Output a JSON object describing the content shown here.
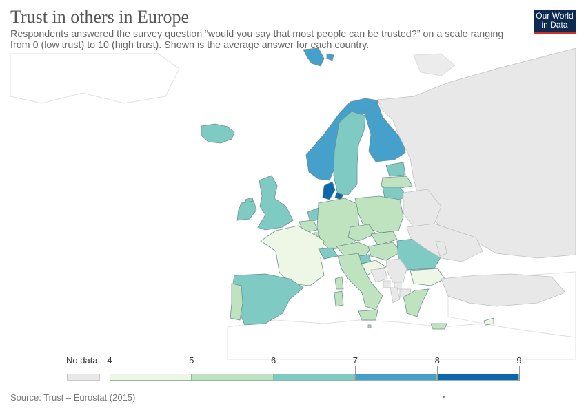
{
  "header": {
    "title": "Trust in others in Europe",
    "subtitle": "Respondents answered the survey question “would you say that most people can be trusted?” on a scale ranging from 0 (low trust) to 10 (high trust). Shown is the average answer for each country.",
    "logo_line1": "Our World",
    "logo_line2": "in Data"
  },
  "legend": {
    "no_data_label": "No data",
    "no_data_color": "#e8e8e8",
    "ticks": [
      "4",
      "5",
      "6",
      "7",
      "8",
      "9"
    ],
    "bins": [
      {
        "from": 4,
        "to": 5,
        "color": "#eef7e6"
      },
      {
        "from": 5,
        "to": 6,
        "color": "#bfe3bf"
      },
      {
        "from": 6,
        "to": 7,
        "color": "#7fcbc4"
      },
      {
        "from": 7,
        "to": 8,
        "color": "#45a1cc"
      },
      {
        "from": 8,
        "to": 9,
        "color": "#0d67ad"
      }
    ]
  },
  "footer": {
    "source": "Source: Trust – Eurostat (2015)"
  },
  "map": {
    "countries": [
      {
        "name": "Iceland",
        "bin": 3
      },
      {
        "name": "Norway",
        "bin": 4
      },
      {
        "name": "Sweden",
        "bin": 3
      },
      {
        "name": "Finland",
        "bin": 4
      },
      {
        "name": "Denmark",
        "bin": 5
      },
      {
        "name": "Estonia",
        "bin": 3
      },
      {
        "name": "Latvia",
        "bin": 2
      },
      {
        "name": "Lithuania",
        "bin": 3
      },
      {
        "name": "United Kingdom",
        "bin": 3
      },
      {
        "name": "Ireland",
        "bin": 3
      },
      {
        "name": "Netherlands",
        "bin": 3
      },
      {
        "name": "Belgium",
        "bin": 2
      },
      {
        "name": "Luxembourg",
        "bin": 2
      },
      {
        "name": "Germany",
        "bin": 2
      },
      {
        "name": "Poland",
        "bin": 2
      },
      {
        "name": "France",
        "bin": 1
      },
      {
        "name": "Switzerland",
        "bin": 3
      },
      {
        "name": "Austria",
        "bin": 2
      },
      {
        "name": "Czechia",
        "bin": 2
      },
      {
        "name": "Slovakia",
        "bin": 2
      },
      {
        "name": "Hungary",
        "bin": 2
      },
      {
        "name": "Slovenia",
        "bin": 3
      },
      {
        "name": "Croatia",
        "bin": 1
      },
      {
        "name": "Romania",
        "bin": 3
      },
      {
        "name": "Bulgaria",
        "bin": 1
      },
      {
        "name": "Serbia",
        "bin": 0
      },
      {
        "name": "Bosnia and Herzegovina",
        "bin": 0
      },
      {
        "name": "Montenegro",
        "bin": 0
      },
      {
        "name": "North Macedonia",
        "bin": 0
      },
      {
        "name": "Kosovo",
        "bin": 0
      },
      {
        "name": "Albania",
        "bin": 0
      },
      {
        "name": "Greece",
        "bin": 2
      },
      {
        "name": "Italy",
        "bin": 2
      },
      {
        "name": "Spain",
        "bin": 3
      },
      {
        "name": "Portugal",
        "bin": 2
      },
      {
        "name": "Cyprus",
        "bin": 1
      },
      {
        "name": "Malta",
        "bin": 2
      },
      {
        "name": "Svalbard",
        "bin": 4
      },
      {
        "name": "Russia",
        "bin": 0
      },
      {
        "name": "Belarus",
        "bin": 0
      },
      {
        "name": "Ukraine",
        "bin": 0
      },
      {
        "name": "Moldova",
        "bin": 0
      },
      {
        "name": "Turkey",
        "bin": 0
      }
    ]
  }
}
